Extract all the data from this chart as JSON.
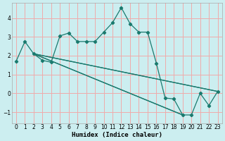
{
  "xlabel": "Humidex (Indice chaleur)",
  "bg_color": "#cceef0",
  "grid_color": "#f0aaaa",
  "line_color": "#1a7a6e",
  "xlim": [
    -0.5,
    23.5
  ],
  "ylim": [
    -1.6,
    4.8
  ],
  "yticks": [
    -1,
    0,
    1,
    2,
    3,
    4
  ],
  "xticks": [
    0,
    1,
    2,
    3,
    4,
    5,
    6,
    7,
    8,
    9,
    10,
    11,
    12,
    13,
    14,
    15,
    16,
    17,
    18,
    19,
    20,
    21,
    22,
    23
  ],
  "line1_x": [
    0,
    1,
    2,
    3,
    4,
    5,
    6,
    7,
    8,
    9,
    10,
    11,
    12,
    13,
    14,
    15,
    16,
    17,
    18,
    19,
    20,
    21,
    22,
    23
  ],
  "line1_y": [
    1.7,
    2.75,
    2.1,
    1.75,
    1.65,
    3.05,
    3.2,
    2.75,
    2.75,
    2.75,
    3.25,
    3.75,
    4.55,
    3.7,
    3.25,
    3.25,
    1.6,
    -0.25,
    -0.3,
    -1.15,
    -1.15,
    0.0,
    -0.65,
    0.1
  ],
  "line2_x": [
    2,
    23
  ],
  "line2_y": [
    2.1,
    0.1
  ],
  "line3_x": [
    2,
    23
  ],
  "line3_y": [
    2.1,
    0.1
  ],
  "line4_x": [
    2,
    19
  ],
  "line4_y": [
    2.1,
    -1.15
  ],
  "line5_x": [
    2,
    19
  ],
  "line5_y": [
    2.1,
    -1.15
  ]
}
